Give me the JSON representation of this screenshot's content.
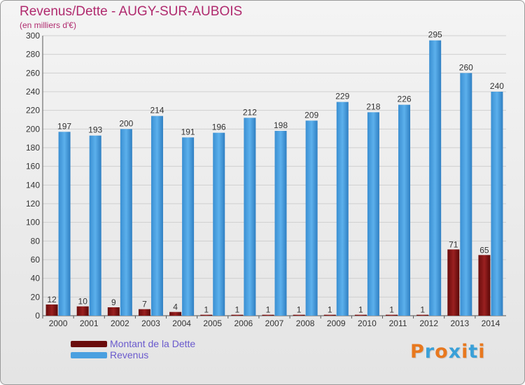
{
  "title": "Revenus/Dette - AUGY-SUR-AUBOIS",
  "subtitle": "(en milliers d'€)",
  "logo_text": "Proxiti",
  "colors": {
    "debt": "#7a1010",
    "revenue": "#4aa0e0",
    "title": "#b02a6e",
    "legend_text": "#6a5acd",
    "logo_letters": [
      "#e8781e",
      "#3aa0d8",
      "#e8781e",
      "#3aa0d8",
      "#e8781e",
      "#3aa0d8",
      "#e8781e"
    ]
  },
  "chart_data": {
    "type": "bar",
    "title": "Revenus/Dette - AUGY-SUR-AUBOIS",
    "subtitle": "(en milliers d'€)",
    "categories": [
      "2000",
      "2001",
      "2002",
      "2003",
      "2004",
      "2005",
      "2006",
      "2007",
      "2008",
      "2009",
      "2010",
      "2011",
      "2012",
      "2013",
      "2014"
    ],
    "series": [
      {
        "name": "Montant de la Dette",
        "values": [
          12,
          10,
          9,
          7,
          4,
          1,
          1,
          1,
          1,
          1,
          1,
          1,
          1,
          71,
          65
        ]
      },
      {
        "name": "Revenus",
        "values": [
          197,
          193,
          200,
          214,
          191,
          196,
          212,
          198,
          209,
          229,
          218,
          226,
          295,
          260,
          240
        ]
      }
    ],
    "ylim": [
      0,
      300
    ],
    "yticks": [
      0,
      20,
      40,
      60,
      80,
      100,
      120,
      140,
      160,
      180,
      200,
      220,
      240,
      260,
      280,
      300
    ],
    "grid": true,
    "legend_position": "bottom-left"
  }
}
